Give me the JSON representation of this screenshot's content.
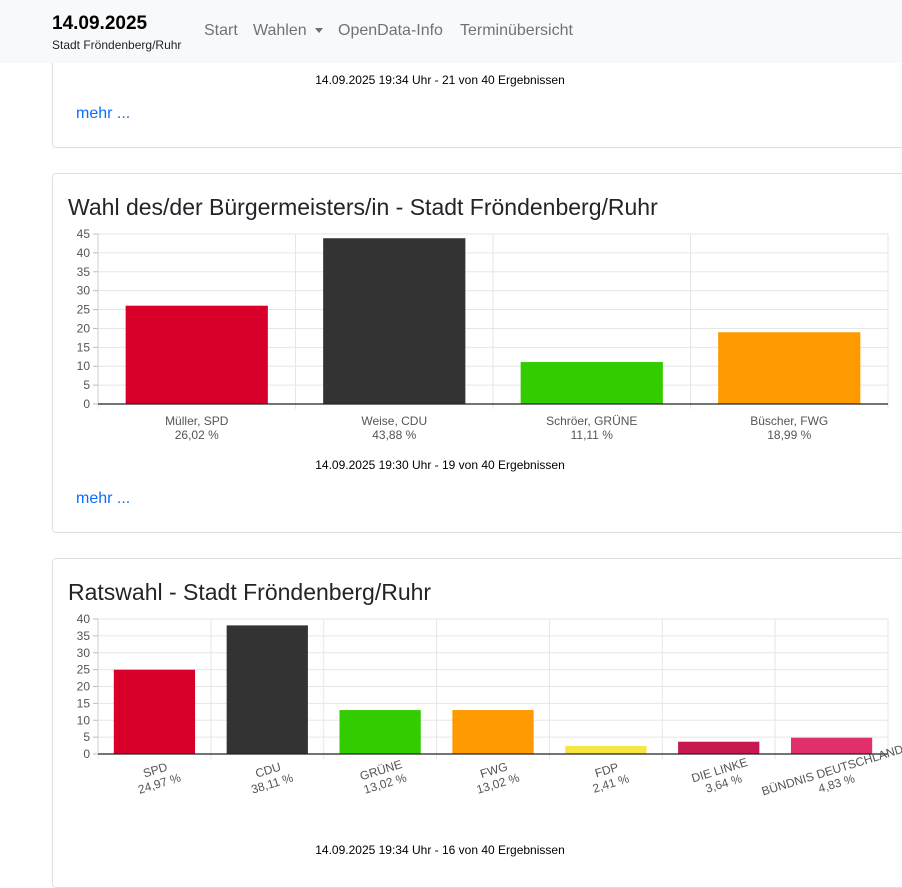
{
  "nav": {
    "brand_date": "14.09.2025",
    "brand_sub": "Stadt Fröndenberg/Ruhr",
    "items": [
      "Start",
      "Wahlen",
      "OpenData-Info",
      "Terminübersicht"
    ]
  },
  "sections": [
    {
      "status": "14.09.2025 19:34 Uhr - 21 von 40 Ergebnissen",
      "more": "mehr ..."
    },
    {
      "title": "Wahl des/der Bürgermeisters/in - Stadt Fröndenberg/Ruhr",
      "status": "14.09.2025 19:30 Uhr - 19 von 40 Ergebnissen",
      "more": "mehr ..."
    },
    {
      "title": "Ratswahl - Stadt Fröndenberg/Ruhr",
      "status": "14.09.2025 19:34 Uhr - 16 von 40 Ergebnissen"
    }
  ],
  "chart_data": [
    {
      "type": "bar",
      "title": "Wahl des/der Bürgermeisters/in - Stadt Fröndenberg/Ruhr",
      "categories": [
        "Müller, SPD",
        "Weise, CDU",
        "Schröer, GRÜNE",
        "Büscher, FWG"
      ],
      "percent_labels": [
        "26,02 %",
        "43,88 %",
        "11,11 %",
        "18,99 %"
      ],
      "values": [
        26.02,
        43.88,
        11.11,
        18.99
      ],
      "colors": [
        "#d8002a",
        "#333333",
        "#33cc00",
        "#ff9900"
      ],
      "ylim": [
        0,
        45
      ],
      "yticks": [
        0,
        5,
        10,
        15,
        20,
        25,
        30,
        35,
        40,
        45
      ],
      "grid": true
    },
    {
      "type": "bar",
      "title": "Ratswahl - Stadt Fröndenberg/Ruhr",
      "categories": [
        "SPD",
        "CDU",
        "GRÜNE",
        "FWG",
        "FDP",
        "DIE LINKE",
        "BÜNDNIS DEUTSCHLAND"
      ],
      "percent_labels": [
        "24,97 %",
        "38,11 %",
        "13,02 %",
        "13,02 %",
        "2,41 %",
        "3,64 %",
        "4,83 %"
      ],
      "values": [
        24.97,
        38.11,
        13.02,
        13.02,
        2.41,
        3.64,
        4.83
      ],
      "colors": [
        "#d8002a",
        "#333333",
        "#33cc00",
        "#ff9900",
        "#f5e642",
        "#c8184f",
        "#e0306c"
      ],
      "ylim": [
        0,
        40
      ],
      "yticks": [
        0,
        5,
        10,
        15,
        20,
        25,
        30,
        35,
        40
      ],
      "grid": true
    }
  ]
}
